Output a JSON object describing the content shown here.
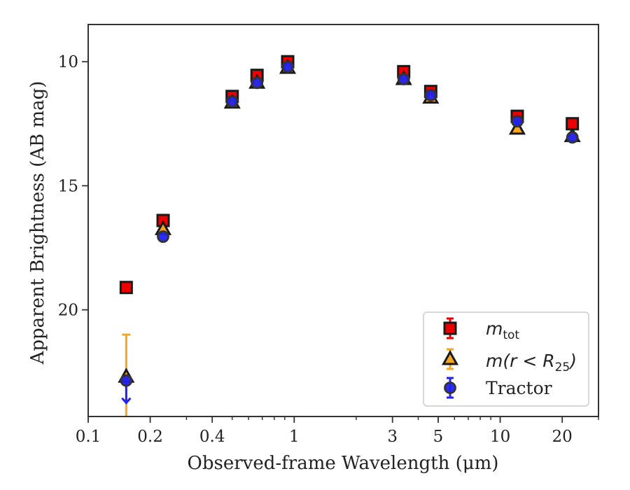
{
  "chart_data": {
    "type": "scatter",
    "xlabel": "Observed-frame Wavelength (μm)",
    "ylabel": "Apparent Brightness (AB mag)",
    "x_scale": "log",
    "xlim": [
      0.1,
      30
    ],
    "ylim": [
      24.3,
      8.5
    ],
    "y_inverted": true,
    "x_ticks": [
      {
        "value": 0.1,
        "label": "0.1"
      },
      {
        "value": 0.2,
        "label": "0.2"
      },
      {
        "value": 0.4,
        "label": "0.4"
      },
      {
        "value": 1,
        "label": "1"
      },
      {
        "value": 3,
        "label": "3"
      },
      {
        "value": 5,
        "label": "5"
      },
      {
        "value": 10,
        "label": "10"
      },
      {
        "value": 20,
        "label": "20"
      }
    ],
    "y_ticks": [
      {
        "value": 10,
        "label": "10"
      },
      {
        "value": 15,
        "label": "15"
      },
      {
        "value": 20,
        "label": "20"
      }
    ],
    "grid": false,
    "legend_position": "bottom-right",
    "series": [
      {
        "key": "mtot",
        "marker": "square",
        "face_color": "#ee0000",
        "error_color": "#ee0000",
        "points": [
          {
            "x": 0.153,
            "y": 19.1
          },
          {
            "x": 0.231,
            "y": 16.4
          },
          {
            "x": 0.5,
            "y": 11.4
          },
          {
            "x": 0.66,
            "y": 10.55
          },
          {
            "x": 0.93,
            "y": 10.0
          },
          {
            "x": 3.4,
            "y": 10.4
          },
          {
            "x": 4.6,
            "y": 11.2
          },
          {
            "x": 12.1,
            "y": 12.2
          },
          {
            "x": 22.4,
            "y": 12.5
          }
        ]
      },
      {
        "key": "mr25",
        "marker": "triangle",
        "face_color": "#f5a623",
        "error_color": "#f5a623",
        "points": [
          {
            "x": 0.153,
            "y": 22.7,
            "err_low": 1.7,
            "err_high": 2.5
          },
          {
            "x": 0.231,
            "y": 16.75
          },
          {
            "x": 0.5,
            "y": 11.65
          },
          {
            "x": 0.66,
            "y": 10.85
          },
          {
            "x": 0.93,
            "y": 10.25
          },
          {
            "x": 3.4,
            "y": 10.7
          },
          {
            "x": 4.6,
            "y": 11.45
          },
          {
            "x": 12.1,
            "y": 12.7
          },
          {
            "x": 22.4,
            "y": 13.0
          }
        ]
      },
      {
        "key": "tractor",
        "marker": "circle",
        "face_color": "#2222ee",
        "error_color": "#2222ee",
        "points": [
          {
            "x": 0.153,
            "y": 22.85,
            "upper_limit": true
          },
          {
            "x": 0.231,
            "y": 17.05
          },
          {
            "x": 0.5,
            "y": 11.6
          },
          {
            "x": 0.66,
            "y": 10.85
          },
          {
            "x": 0.93,
            "y": 10.2
          },
          {
            "x": 3.4,
            "y": 10.7
          },
          {
            "x": 4.6,
            "y": 11.35
          },
          {
            "x": 12.1,
            "y": 12.4
          },
          {
            "x": 22.4,
            "y": 13.05
          }
        ]
      }
    ],
    "legend": {
      "mtot": {
        "main": "m",
        "sub": "tot"
      },
      "mr25": {
        "main": "m",
        "open": "(r < R",
        "sub": "25",
        "close": ")"
      },
      "tractor": {
        "label": "Tractor"
      }
    }
  }
}
